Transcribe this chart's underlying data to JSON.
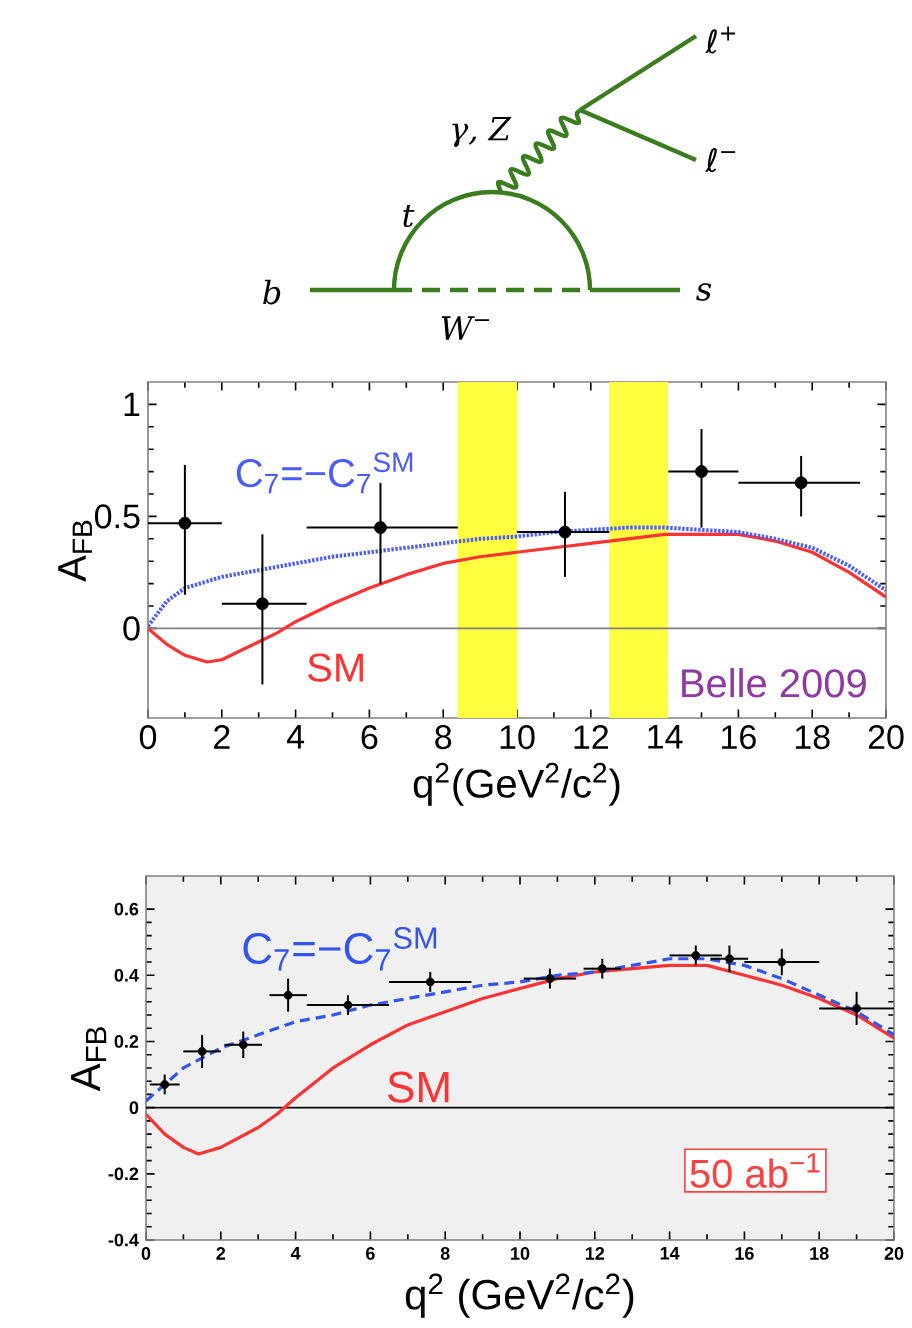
{
  "chart_data": [
    {
      "type": "other",
      "annotations": [
        "b",
        "s",
        "t",
        "W$^{−}$",
        "γ, Z",
        "ℓ$^{+}$",
        "ℓ$^{−}$"
      ]
    },
    {
      "type": "line",
      "xlabel": "q$^{2}$(GeV$^{2}$/c$^{2}$)",
      "ylabel": "A$_{FB}$",
      "xlim": [
        0,
        20
      ],
      "ylim": [
        -0.4,
        1.1
      ],
      "xticks": [
        0,
        2,
        4,
        6,
        8,
        10,
        12,
        14,
        16,
        18,
        20
      ],
      "yticks": [
        0,
        0.5,
        1
      ],
      "ref_lines": [
        {
          "axis": "y",
          "value": 0,
          "color": "#808080"
        }
      ],
      "bands": [
        {
          "axis": "x",
          "from": 8.4,
          "to": 10.0,
          "color": "#ffff40"
        },
        {
          "axis": "x",
          "from": 12.5,
          "to": 14.1,
          "color": "#ffff40"
        }
      ],
      "series": [
        {
          "type": "line",
          "color": "#ff3333",
          "line_style": "solid",
          "x": [
            0,
            0.5,
            1,
            1.6,
            2,
            2.5,
            3,
            3.5,
            4,
            5,
            6,
            7,
            8,
            9,
            10,
            11,
            12,
            13,
            14,
            15,
            16,
            17,
            18,
            19,
            20
          ],
          "values": [
            0,
            -0.07,
            -0.12,
            -0.15,
            -0.14,
            -0.1,
            -0.06,
            -0.02,
            0.03,
            0.11,
            0.18,
            0.24,
            0.29,
            0.32,
            0.34,
            0.36,
            0.38,
            0.4,
            0.42,
            0.42,
            0.42,
            0.39,
            0.34,
            0.25,
            0.14
          ]
        },
        {
          "type": "line",
          "color": "#4a5cff",
          "line_style": "dotted",
          "x": [
            0,
            0.5,
            1,
            2,
            3,
            4,
            5,
            6,
            7,
            8,
            9,
            10,
            11,
            12,
            13,
            14,
            15,
            16,
            17,
            18,
            19,
            20
          ],
          "values": [
            0.01,
            0.12,
            0.18,
            0.23,
            0.26,
            0.29,
            0.32,
            0.34,
            0.36,
            0.38,
            0.4,
            0.41,
            0.43,
            0.44,
            0.45,
            0.45,
            0.44,
            0.43,
            0.4,
            0.36,
            0.28,
            0.17
          ]
        },
        {
          "type": "scatter",
          "color": "#000000",
          "x": [
            1.0,
            3.1,
            6.3,
            11.3,
            15.0,
            17.7
          ],
          "values": [
            0.47,
            0.11,
            0.45,
            0.43,
            0.7,
            0.65
          ],
          "errors": [
            [
              0.15,
              0.73
            ],
            [
              -0.25,
              0.42
            ],
            [
              0.2,
              0.65
            ],
            [
              0.23,
              0.61
            ],
            [
              0.45,
              0.89
            ],
            [
              0.5,
              0.77
            ]
          ],
          "xerrors": [
            [
              0,
              2
            ],
            [
              2,
              4.3
            ],
            [
              4.3,
              8.4
            ],
            [
              10,
              12.5
            ],
            [
              14.1,
              16
            ],
            [
              16,
              19.3
            ]
          ]
        }
      ],
      "annotations": [
        "C$_{7}$=−C$_{7}$$^{SM}$",
        "SM",
        "Belle 2009"
      ]
    },
    {
      "type": "line",
      "xlabel": "q$^{2}$ (GeV$^{2}$/c$^{2}$)",
      "ylabel": "A$_{FB}$",
      "xlim": [
        0,
        20
      ],
      "ylim": [
        -0.4,
        0.7
      ],
      "xticks": [
        0,
        2,
        4,
        6,
        8,
        10,
        12,
        14,
        16,
        18,
        20
      ],
      "yticks": [
        -0.4,
        -0.2,
        0,
        0.2,
        0.4,
        0.6
      ],
      "ref_lines": [
        {
          "axis": "y",
          "value": 0,
          "color": "#000000"
        }
      ],
      "series": [
        {
          "type": "line",
          "color": "#ff3333",
          "line_style": "solid",
          "x": [
            0,
            0.5,
            1,
            1.4,
            2,
            3,
            3.5,
            4,
            5,
            6,
            7,
            8,
            9,
            10,
            11,
            12,
            13,
            14,
            15,
            16,
            17,
            18,
            19,
            20
          ],
          "values": [
            -0.02,
            -0.08,
            -0.12,
            -0.14,
            -0.12,
            -0.06,
            -0.02,
            0.03,
            0.12,
            0.19,
            0.25,
            0.29,
            0.33,
            0.36,
            0.39,
            0.41,
            0.42,
            0.43,
            0.43,
            0.4,
            0.37,
            0.33,
            0.28,
            0.21
          ]
        },
        {
          "type": "line",
          "color": "#3355ee",
          "line_style": "dashed",
          "x": [
            0,
            0.5,
            1,
            2,
            3,
            4,
            5,
            6,
            7,
            8,
            9,
            10,
            11,
            12,
            13,
            14,
            15,
            16,
            17,
            18,
            19,
            20
          ],
          "values": [
            0.02,
            0.07,
            0.12,
            0.18,
            0.22,
            0.26,
            0.28,
            0.31,
            0.33,
            0.35,
            0.37,
            0.38,
            0.4,
            0.41,
            0.43,
            0.45,
            0.45,
            0.43,
            0.39,
            0.34,
            0.29,
            0.22
          ]
        },
        {
          "type": "scatter",
          "color": "#000000",
          "x": [
            0.5,
            1.5,
            2.6,
            3.8,
            5.4,
            7.6,
            10.8,
            12.2,
            14.7,
            15.6,
            17.0,
            19.0
          ],
          "values": [
            0.07,
            0.17,
            0.19,
            0.34,
            0.31,
            0.38,
            0.39,
            0.42,
            0.46,
            0.45,
            0.44,
            0.3
          ],
          "errors": [
            0.03,
            0.05,
            0.04,
            0.05,
            0.03,
            0.03,
            0.03,
            0.03,
            0.03,
            0.04,
            0.04,
            0.05
          ],
          "xerrors": [
            0.4,
            0.5,
            0.5,
            0.5,
            1.1,
            1.1,
            0.7,
            0.5,
            0.7,
            0.5,
            1.0,
            1.0
          ]
        }
      ],
      "annotations": [
        "C$_{7}$=−C$_{7}$$^{SM}$",
        "SM",
        "50 ab$^{−1}$"
      ]
    }
  ]
}
